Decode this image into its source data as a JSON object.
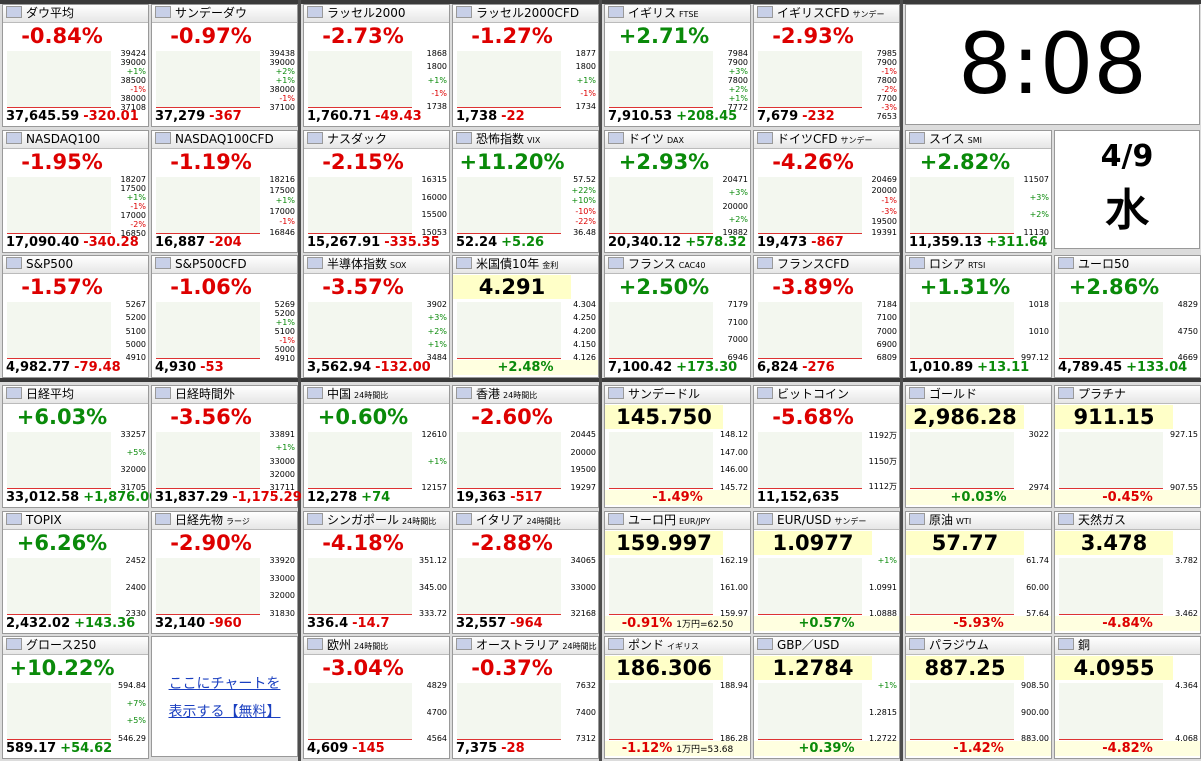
{
  "clock": {
    "time": "8:08",
    "date": "4/9",
    "weekday": "水"
  },
  "top_groups": [
    [
      {
        "kind": "index",
        "name": "ダウ平均",
        "pct": "-0.84%",
        "price": "37,645.59",
        "change": "-320.01",
        "axis": [
          "39424",
          "39000",
          "+1%",
          "38500",
          "-1%",
          "38000",
          "37108"
        ]
      },
      {
        "kind": "index",
        "name": "サンデーダウ",
        "pct": "-0.97%",
        "price": "37,279",
        "change": "-367",
        "axis": [
          "39438",
          "39000",
          "+2%",
          "+1%",
          "38000",
          "-1%",
          "37100"
        ]
      },
      {
        "kind": "index",
        "name": "NASDAQ100",
        "pct": "-1.95%",
        "price": "17,090.40",
        "change": "-340.28",
        "axis": [
          "18207",
          "17500",
          "+1%",
          "-1%",
          "17000",
          "-2%",
          "16850"
        ]
      },
      {
        "kind": "index",
        "name": "NASDAQ100CFD",
        "pct": "-1.19%",
        "price": "16,887",
        "change": "-204",
        "axis": [
          "18216",
          "17500",
          "+1%",
          "17000",
          "-1%",
          "16846"
        ]
      },
      {
        "kind": "index",
        "name": "S&P500",
        "pct": "-1.57%",
        "price": "4,982.77",
        "change": "-79.48",
        "axis": [
          "5267",
          "5200",
          "5100",
          "5000",
          "4910"
        ]
      },
      {
        "kind": "index",
        "name": "S&P500CFD",
        "pct": "-1.06%",
        "price": "4,930",
        "change": "-53",
        "axis": [
          "5269",
          "5200",
          "+1%",
          "5100",
          "-1%",
          "5000",
          "4910"
        ]
      }
    ],
    [
      {
        "kind": "index",
        "name": "ラッセル2000",
        "pct": "-2.73%",
        "price": "1,760.71",
        "change": "-49.43",
        "axis": [
          "1868",
          "1800",
          "+1%",
          "-1%",
          "1738"
        ]
      },
      {
        "kind": "index",
        "name": "ラッセル2000CFD",
        "pct": "-1.27%",
        "price": "1,738",
        "change": "-22",
        "axis": [
          "1877",
          "1800",
          "+1%",
          "-1%",
          "1734"
        ]
      },
      {
        "kind": "index",
        "name": "ナスダック",
        "pct": "-2.15%",
        "price": "15,267.91",
        "change": "-335.35",
        "axis": [
          "16315",
          "16000",
          "15500",
          "15053"
        ]
      },
      {
        "kind": "index",
        "name": "恐怖指数",
        "tag": "VIX",
        "pct": "+11.20%",
        "price": "52.24",
        "change": "+5.26",
        "axis": [
          "57.52",
          "+22%",
          "+10%",
          "-10%",
          "-22%",
          "36.48"
        ]
      },
      {
        "kind": "index",
        "name": "半導体指数",
        "tag": "SOX",
        "pct": "-3.57%",
        "price": "3,562.94",
        "change": "-132.00",
        "axis": [
          "3902",
          "+3%",
          "+2%",
          "+1%",
          "3484"
        ]
      },
      {
        "kind": "quote",
        "name": "米国債10年",
        "tag": "金利",
        "price": "4.291",
        "pct": "+2.48%",
        "axis": [
          "4.304",
          "4.250",
          "4.200",
          "4.150",
          "4.126"
        ]
      }
    ],
    [
      {
        "kind": "index",
        "name": "イギリス",
        "tag": "FTSE",
        "pct": "+2.71%",
        "price": "7,910.53",
        "change": "+208.45",
        "axis": [
          "7984",
          "7900",
          "+3%",
          "7800",
          "+2%",
          "+1%",
          "7772"
        ]
      },
      {
        "kind": "index",
        "name": "イギリスCFD",
        "tag": "サンデー",
        "pct": "-2.93%",
        "price": "7,679",
        "change": "-232",
        "axis": [
          "7985",
          "7900",
          "-1%",
          "7800",
          "-2%",
          "7700",
          "-3%",
          "7653"
        ]
      },
      {
        "kind": "index",
        "name": "ドイツ",
        "tag": "DAX",
        "pct": "+2.93%",
        "price": "20,340.12",
        "change": "+578.32",
        "axis": [
          "20471",
          "+3%",
          "20000",
          "+2%",
          "19882"
        ]
      },
      {
        "kind": "index",
        "name": "ドイツCFD",
        "tag": "サンデー",
        "pct": "-4.26%",
        "price": "19,473",
        "change": "-867",
        "axis": [
          "20469",
          "20000",
          "-1%",
          "-3%",
          "19500",
          "19391"
        ]
      },
      {
        "kind": "index",
        "name": "フランス",
        "tag": "CAC40",
        "pct": "+2.50%",
        "price": "7,100.42",
        "change": "+173.30",
        "axis": [
          "7179",
          "7100",
          "7000",
          "6946"
        ]
      },
      {
        "kind": "index",
        "name": "フランスCFD",
        "pct": "-3.89%",
        "price": "6,824",
        "change": "-276",
        "axis": [
          "7184",
          "7100",
          "7000",
          "6900",
          "6809"
        ]
      }
    ]
  ],
  "top_group4_tiles": [
    {
      "kind": "index",
      "name": "スイス",
      "tag": "SMI",
      "pct": "+2.82%",
      "price": "11,359.13",
      "change": "+311.64",
      "axis": [
        "11507",
        "+3%",
        "+2%",
        "11130"
      ]
    },
    {
      "kind": "index",
      "name": "ロシア",
      "tag": "RTSI",
      "pct": "+1.31%",
      "price": "1,010.89",
      "change": "+13.11",
      "axis": [
        "1018",
        "1010",
        "997.12"
      ]
    },
    {
      "kind": "index",
      "name": "ユーロ50",
      "pct": "+2.86%",
      "price": "4,789.45",
      "change": "+133.04",
      "axis": [
        "4829",
        "4750",
        "4669"
      ]
    }
  ],
  "bottom_groups": [
    [
      {
        "kind": "index",
        "name": "日経平均",
        "pct": "+6.03%",
        "price": "33,012.58",
        "change": "+1,876.00",
        "axis": [
          "33257",
          "+5%",
          "32000",
          "31705"
        ]
      },
      {
        "kind": "index",
        "name": "日経時間外",
        "pct": "-3.56%",
        "price": "31,837.29",
        "change": "-1,175.29",
        "axis": [
          "33891",
          "+1%",
          "33000",
          "32000",
          "31711"
        ]
      },
      {
        "kind": "index",
        "name": "TOPIX",
        "pct": "+6.26%",
        "price": "2,432.02",
        "change": "+143.36",
        "axis": [
          "2452",
          "2400",
          "2330"
        ]
      },
      {
        "kind": "index",
        "name": "日経先物",
        "tag": "ラージ",
        "pct": "-2.90%",
        "price": "32,140",
        "change": "-960",
        "axis": [
          "33920",
          "33000",
          "32000",
          "31830"
        ]
      },
      {
        "kind": "index",
        "name": "グロース250",
        "pct": "+10.22%",
        "price": "589.17",
        "change": "+54.62",
        "axis": [
          "594.84",
          "+7%",
          "+5%",
          "546.29"
        ]
      }
    ],
    [
      {
        "kind": "index",
        "name": "中国",
        "tag": "24時間比",
        "pct": "+0.60%",
        "price": "12,278",
        "change": "+74",
        "axis": [
          "12610",
          "+1%",
          "12157"
        ]
      },
      {
        "kind": "index",
        "name": "香港",
        "tag": "24時間比",
        "pct": "-2.60%",
        "price": "19,363",
        "change": "-517",
        "axis": [
          "20445",
          "20000",
          "19500",
          "19297"
        ]
      },
      {
        "kind": "index",
        "name": "シンガポール",
        "tag": "24時間比",
        "pct": "-4.18%",
        "price": "336.4",
        "change": "-14.7",
        "axis": [
          "351.12",
          "345.00",
          "333.72"
        ]
      },
      {
        "kind": "index",
        "name": "イタリア",
        "tag": "24時間比",
        "pct": "-2.88%",
        "price": "32,557",
        "change": "-964",
        "axis": [
          "34065",
          "33000",
          "32168"
        ]
      },
      {
        "kind": "index",
        "name": "欧州",
        "tag": "24時間比",
        "pct": "-3.04%",
        "price": "4,609",
        "change": "-145",
        "axis": [
          "4829",
          "4700",
          "4564"
        ]
      },
      {
        "kind": "index",
        "name": "オーストラリア",
        "tag": "24時間比",
        "pct": "-0.37%",
        "price": "7,375",
        "change": "-28",
        "axis": [
          "7632",
          "7400",
          "7312"
        ]
      }
    ],
    [
      {
        "kind": "quote",
        "name": "サンデードル",
        "price": "145.750",
        "pct": "-1.49%",
        "axis": [
          "148.12",
          "147.00",
          "146.00",
          "145.72"
        ]
      },
      {
        "kind": "index",
        "name": "ビットコイン",
        "pct": "-5.68%",
        "price": "11,152,635",
        "axis": [
          "1192万",
          "1150万",
          "1112万"
        ]
      },
      {
        "kind": "quote",
        "name": "ユーロ円",
        "tag": "EUR/JPY",
        "price": "159.997",
        "pct": "-0.91%",
        "note": "1万円=62.50",
        "axis": [
          "162.19",
          "161.00",
          "159.97"
        ]
      },
      {
        "kind": "quote",
        "name": "EUR/USD",
        "tag": "サンデー",
        "price": "1.0977",
        "pct": "+0.57%",
        "axis": [
          "+1%",
          "1.0991",
          "1.0888"
        ]
      },
      {
        "kind": "quote",
        "name": "ポンド",
        "tag": "イギリス",
        "price": "186.306",
        "pct": "-1.12%",
        "note": "1万円=53.68",
        "axis": [
          "188.94",
          "186.28"
        ]
      },
      {
        "kind": "quote",
        "name": "GBP／USD",
        "price": "1.2784",
        "pct": "+0.39%",
        "axis": [
          "+1%",
          "1.2815",
          "1.2722"
        ]
      }
    ],
    [
      {
        "kind": "quote",
        "name": "ゴールド",
        "price": "2,986.28",
        "pct": "+0.03%",
        "axis": [
          "3022",
          "2974"
        ]
      },
      {
        "kind": "quote",
        "name": "プラチナ",
        "price": "911.15",
        "pct": "-0.45%",
        "axis": [
          "927.15",
          "907.55"
        ]
      },
      {
        "kind": "quote",
        "name": "原油",
        "tag": "WTI",
        "price": "57.77",
        "pct": "-5.93%",
        "axis": [
          "61.74",
          "60.00",
          "57.64"
        ]
      },
      {
        "kind": "quote",
        "name": "天然ガス",
        "price": "3.478",
        "pct": "-4.84%",
        "axis": [
          "3.782",
          "3.462"
        ]
      },
      {
        "kind": "quote",
        "name": "パラジウム",
        "price": "887.25",
        "pct": "-1.42%",
        "axis": [
          "908.50",
          "900.00",
          "883.00"
        ]
      },
      {
        "kind": "quote",
        "name": "銅",
        "price": "4.0955",
        "pct": "-4.82%",
        "axis": [
          "4.364",
          "4.068"
        ]
      }
    ]
  ],
  "promo": [
    "ここにチャートを",
    "表示する【無料】"
  ]
}
